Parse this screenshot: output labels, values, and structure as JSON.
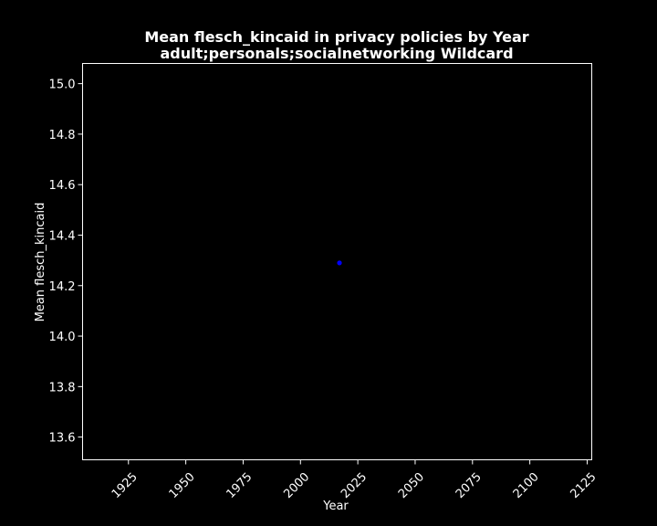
{
  "chart_data": {
    "type": "scatter",
    "title_line1": "Mean flesch_kincaid in privacy policies by Year",
    "title_line2": "adult;personals;socialnetworking Wildcard",
    "xlabel": "Year",
    "ylabel": "Mean flesch_kincaid",
    "xlim": [
      1905,
      2127
    ],
    "ylim": [
      13.51,
      15.08
    ],
    "xticks": [
      1925,
      1950,
      1975,
      2000,
      2025,
      2050,
      2075,
      2100,
      2125
    ],
    "yticks": [
      13.6,
      13.8,
      14.0,
      14.2,
      14.4,
      14.6,
      14.8,
      15.0
    ],
    "ytick_labels": [
      "13.6",
      "13.8",
      "14.0",
      "14.2",
      "14.4",
      "14.6",
      "14.8",
      "15.0"
    ],
    "grid": false,
    "series": [
      {
        "x": [
          2017
        ],
        "y": [
          14.29
        ],
        "color": "#0000ff"
      }
    ],
    "colors": {
      "background": "#000000",
      "axes": "#ffffff",
      "point": "#0000ff"
    }
  }
}
